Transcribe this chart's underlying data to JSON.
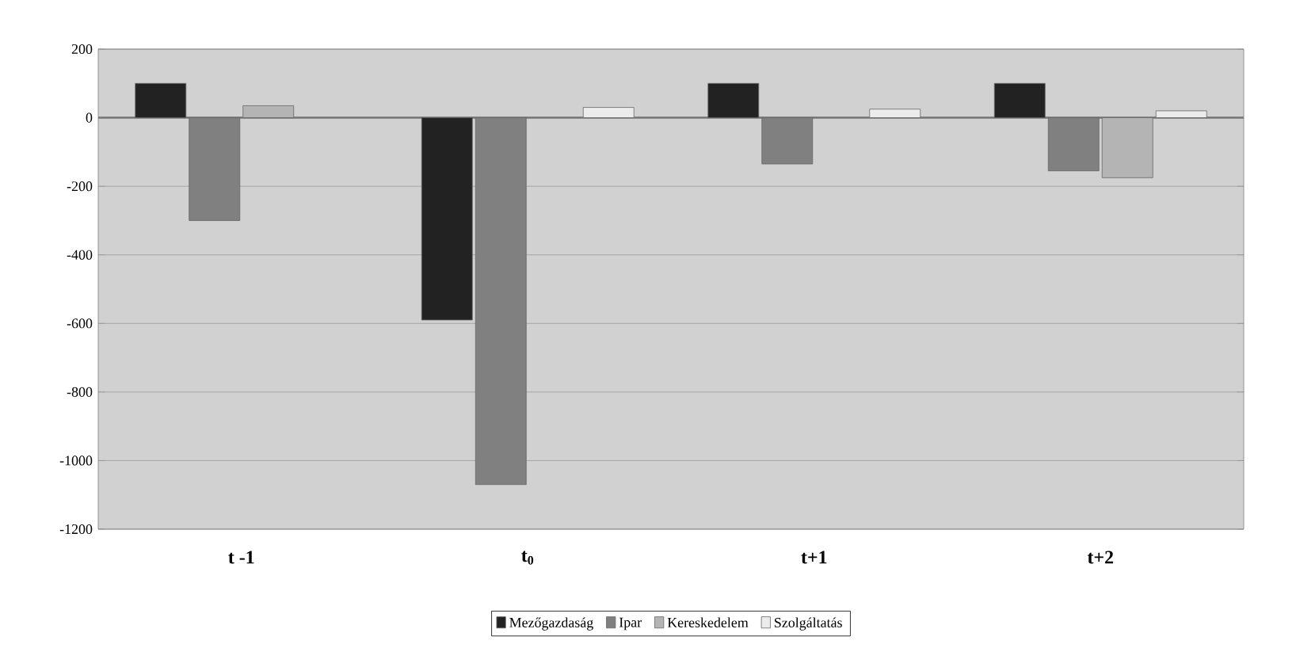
{
  "chart_data": {
    "type": "bar",
    "categories": [
      "t -1",
      "t$_{0}$",
      "t+1",
      "t+2"
    ],
    "series": [
      {
        "name": "Mezőgazdaság",
        "color": "#222222",
        "values": [
          100,
          -590,
          100,
          100
        ]
      },
      {
        "name": "Ipar",
        "color": "#808080",
        "values": [
          -300,
          -1070,
          -135,
          -155
        ]
      },
      {
        "name": "Kereskedelem",
        "color": "#b4b4b4",
        "values": [
          35,
          null,
          null,
          -175
        ]
      },
      {
        "name": "Szolgáltatás",
        "color": "#ececec",
        "values": [
          null,
          30,
          25,
          20
        ]
      }
    ],
    "ylim": [
      -1200,
      200
    ],
    "yticks": [
      -1200,
      -1000,
      -800,
      -600,
      -400,
      -200,
      0,
      200
    ],
    "grid": "y",
    "legend": "bottom"
  }
}
